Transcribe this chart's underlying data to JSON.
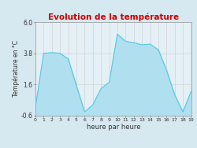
{
  "title": "Evolution de la température",
  "xlabel": "heure par heure",
  "ylabel": "Température en °C",
  "background_color": "#d6e8f0",
  "plot_bg_color": "#e4f0f6",
  "line_color": "#55c8e0",
  "fill_color": "#b0dff0",
  "ylim": [
    -0.6,
    6.0
  ],
  "xlim": [
    0,
    19
  ],
  "yticks": [
    -0.6,
    1.6,
    3.8,
    6.0
  ],
  "xticks": [
    0,
    1,
    2,
    3,
    4,
    5,
    6,
    7,
    8,
    9,
    10,
    11,
    12,
    13,
    14,
    15,
    16,
    17,
    18,
    19
  ],
  "hours": [
    0,
    1,
    2,
    3,
    4,
    5,
    6,
    7,
    8,
    9,
    10,
    11,
    12,
    13,
    14,
    15,
    16,
    17,
    18,
    19
  ],
  "temps": [
    0.0,
    3.8,
    3.85,
    3.8,
    3.4,
    1.5,
    -0.35,
    0.15,
    1.3,
    1.75,
    5.15,
    4.65,
    4.55,
    4.4,
    4.45,
    4.05,
    2.6,
    0.85,
    -0.35,
    1.1
  ],
  "title_color": "#cc0000",
  "grid_color": "#cccccc",
  "tick_label_color": "#333333",
  "title_fontsize": 7.5,
  "xlabel_fontsize": 6.0,
  "ylabel_fontsize": 5.5,
  "tick_fontsize_x": 4.5,
  "tick_fontsize_y": 5.5
}
